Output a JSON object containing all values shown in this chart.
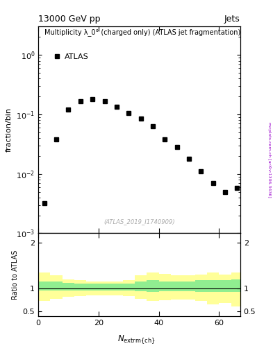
{
  "title_left": "13000 GeV pp",
  "title_right": "Jets",
  "main_ylabel": "fraction/bin",
  "main_title": "Multiplicity λ_0° (charged only) (ATLAS jet fragmentation)",
  "legend_label": "ATLAS",
  "ratio_ylabel": "Ratio to ATLAS",
  "watermark": "(ATLAS_2019_I1740909)",
  "right_label": "mcplots.cern.ch [arXiv:1306.3436]",
  "data_x": [
    2,
    6,
    10,
    14,
    18,
    22,
    26,
    30,
    34,
    38,
    42,
    46,
    50,
    54,
    58,
    62,
    66
  ],
  "data_y": [
    0.0032,
    0.038,
    0.12,
    0.165,
    0.18,
    0.165,
    0.135,
    0.105,
    0.085,
    0.063,
    0.038,
    0.028,
    0.018,
    0.011,
    0.007,
    0.005,
    0.0058
  ],
  "xlim": [
    0,
    67
  ],
  "ylim_main": [
    0.001,
    3
  ],
  "ylim_ratio": [
    0.4,
    2.2
  ],
  "ratio_yticks": [
    0.5,
    1.0,
    2.0
  ],
  "ratio_x_edges": [
    0,
    4,
    8,
    12,
    16,
    20,
    24,
    28,
    32,
    36,
    40,
    44,
    48,
    52,
    56,
    60,
    64,
    68
  ],
  "green_upper": [
    1.15,
    1.15,
    1.12,
    1.1,
    1.1,
    1.1,
    1.1,
    1.1,
    1.15,
    1.18,
    1.15,
    1.15,
    1.15,
    1.18,
    1.18,
    1.18,
    1.2
  ],
  "green_lower": [
    0.95,
    0.96,
    0.96,
    0.95,
    0.96,
    0.96,
    0.96,
    0.96,
    0.94,
    0.93,
    0.94,
    0.94,
    0.94,
    0.93,
    0.92,
    0.92,
    0.92
  ],
  "yellow_upper": [
    1.35,
    1.28,
    1.2,
    1.18,
    1.15,
    1.15,
    1.15,
    1.18,
    1.28,
    1.35,
    1.32,
    1.28,
    1.28,
    1.3,
    1.35,
    1.3,
    1.35
  ],
  "yellow_lower": [
    0.72,
    0.78,
    0.82,
    0.84,
    0.85,
    0.85,
    0.85,
    0.84,
    0.78,
    0.72,
    0.74,
    0.76,
    0.76,
    0.72,
    0.65,
    0.68,
    0.6
  ],
  "green_color": "#90EE90",
  "yellow_color": "#FFFF99",
  "marker_color": "black",
  "bg_color": "white"
}
